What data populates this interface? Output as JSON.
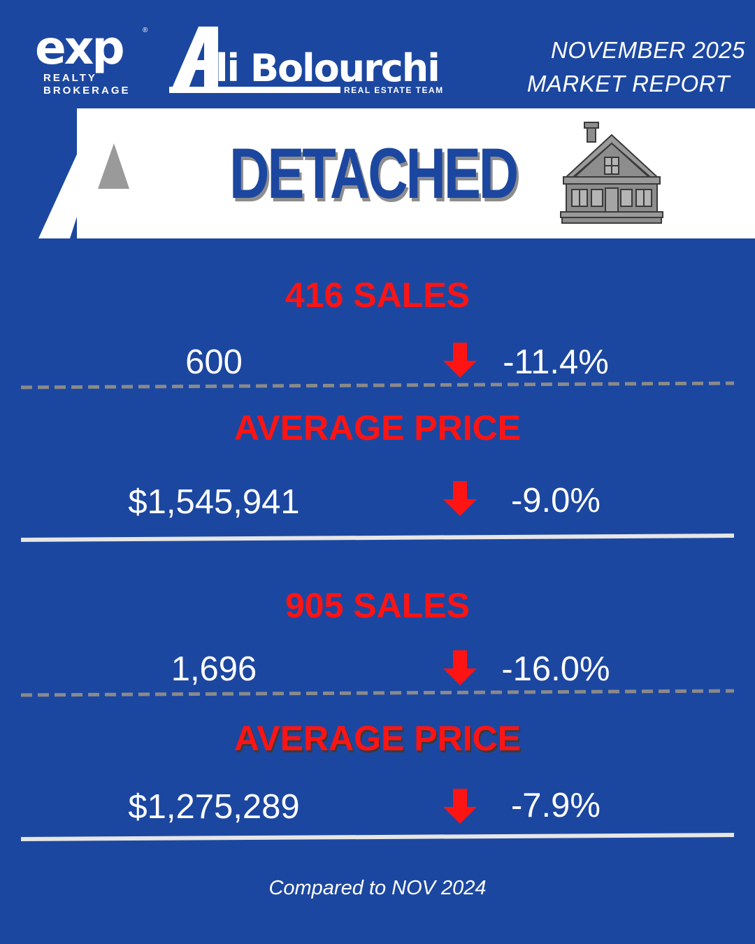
{
  "header": {
    "exp_logo": {
      "mark": "exp",
      "registered": "®",
      "line1": "REALTY",
      "line2": "BROKERAGE"
    },
    "team_logo": {
      "name": "li Bolourchi",
      "subtitle": "REAL ESTATE TEAM"
    },
    "report_line1": "NOVEMBER 2025",
    "report_line2": "MARKET REPORT"
  },
  "banner": {
    "title": "DETACHED",
    "icon": "house-icon"
  },
  "regions": [
    {
      "sales_heading": "416 SALES",
      "sales_value": "600",
      "sales_change": "-11.4%",
      "price_heading": "AVERAGE PRICE",
      "price_value": "$1,545,941",
      "price_change": "-9.0%"
    },
    {
      "sales_heading": "905 SALES",
      "sales_value": "1,696",
      "sales_change": "-16.0%",
      "price_heading": "AVERAGE PRICE",
      "price_value": "$1,275,289",
      "price_change": "-7.9%"
    }
  ],
  "footer": {
    "note": "Compared to NOV 2024"
  },
  "colors": {
    "background": "#1c47a0",
    "accent_red": "#ff1414",
    "divider_dashed": "#8a8a8a",
    "divider_solid": "#e6e6e6",
    "white": "#ffffff"
  },
  "icons": {
    "change_indicator": "down-arrow-icon"
  }
}
